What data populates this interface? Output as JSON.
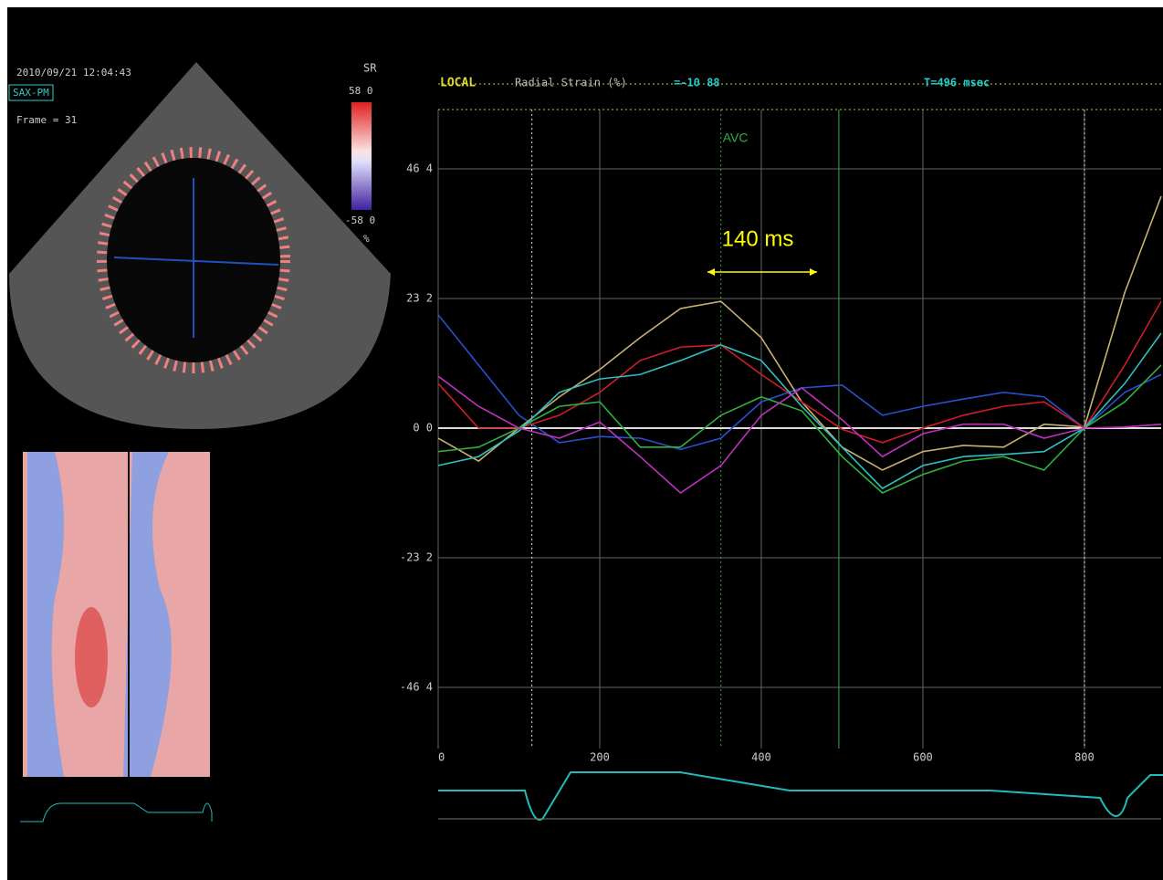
{
  "header": {
    "date": "2010/09/21 12:04:43",
    "view": "SAX-PM",
    "frame": "Frame = 31",
    "colorbar_title": "SR",
    "colorbar_max": "58 0",
    "colorbar_min": "-58 0",
    "colorbar_unit": "%"
  },
  "chart_data": {
    "type": "line",
    "title": "LOCAL",
    "subtitle": "Radial Strain (%)",
    "readout": "=-10 88",
    "time_readout": "T=496 msec",
    "annotation": "140 ms",
    "x": [
      0,
      50,
      100,
      150,
      200,
      250,
      300,
      350,
      400,
      450,
      500,
      550,
      600,
      650,
      700,
      750,
      800,
      850,
      895
    ],
    "series": [
      {
        "color": "#2a4fd0",
        "values": [
          20.3,
          11.3,
          2.3,
          -2.6,
          -1.5,
          -1.8,
          -3.8,
          -1.8,
          4.7,
          7.2,
          7.7,
          2.3,
          3.9,
          5.2,
          6.4,
          5.6,
          0,
          6.4,
          9.6
        ]
      },
      {
        "color": "#c9b070",
        "values": [
          -1.8,
          -5.9,
          0,
          5.6,
          10.5,
          16.2,
          21.4,
          22.7,
          16.2,
          4.7,
          -3.4,
          -7.5,
          -4.2,
          -3.1,
          -3.4,
          0.7,
          0.2,
          24.3,
          41.5
        ]
      },
      {
        "color": "#d01c28",
        "values": [
          8,
          0,
          0,
          2.3,
          6.4,
          12.1,
          14.5,
          14.9,
          9.6,
          4.7,
          -0.2,
          -2.6,
          0,
          2.3,
          3.9,
          4.7,
          0,
          11.3,
          22.7
        ]
      },
      {
        "color": "#2fb040",
        "values": [
          -4.2,
          -3.4,
          0,
          3.9,
          4.7,
          -3.4,
          -3.4,
          2.3,
          5.6,
          3.1,
          -5.1,
          -11.6,
          -8.3,
          -5.9,
          -5.1,
          -7.5,
          0,
          4.7,
          11.3
        ]
      },
      {
        "color": "#2ec0c0",
        "values": [
          -6.7,
          -5.1,
          -0.5,
          6.4,
          8.8,
          9.6,
          12.1,
          14.9,
          12.1,
          3.9,
          -3.4,
          -10.8,
          -6.7,
          -5.1,
          -4.7,
          -4.2,
          0,
          8,
          17
        ]
      },
      {
        "color": "#c030c0",
        "values": [
          9.3,
          3.9,
          0,
          -1.8,
          1.1,
          -5.1,
          -11.6,
          -6.7,
          2.3,
          7.2,
          1.5,
          -5.1,
          -1,
          0.7,
          0.7,
          -1.8,
          0,
          0.2,
          0.7
        ]
      }
    ],
    "xlim": [
      0,
      895
    ],
    "ylim": [
      -58,
      58
    ],
    "xticks": [
      0,
      200,
      400,
      600,
      800
    ],
    "yticks": [
      {
        "value": 46.4,
        "label": "46 4"
      },
      {
        "value": 23.2,
        "label": "23 2"
      },
      {
        "value": 0,
        "label": "0 0"
      },
      {
        "value": -23.2,
        "label": "-23 2"
      },
      {
        "value": -46.4,
        "label": "-46 4"
      }
    ],
    "grid": true,
    "event_lines": [
      {
        "x": 116,
        "color": "#dddddd",
        "style": "dotted"
      },
      {
        "x": 350,
        "color": "#2fb040",
        "style": "dotted",
        "label": "AVC"
      },
      {
        "x": 496,
        "color": "#2fb040",
        "style": "solid"
      },
      {
        "x": 800,
        "color": "#dddddd",
        "style": "dotted"
      }
    ]
  }
}
